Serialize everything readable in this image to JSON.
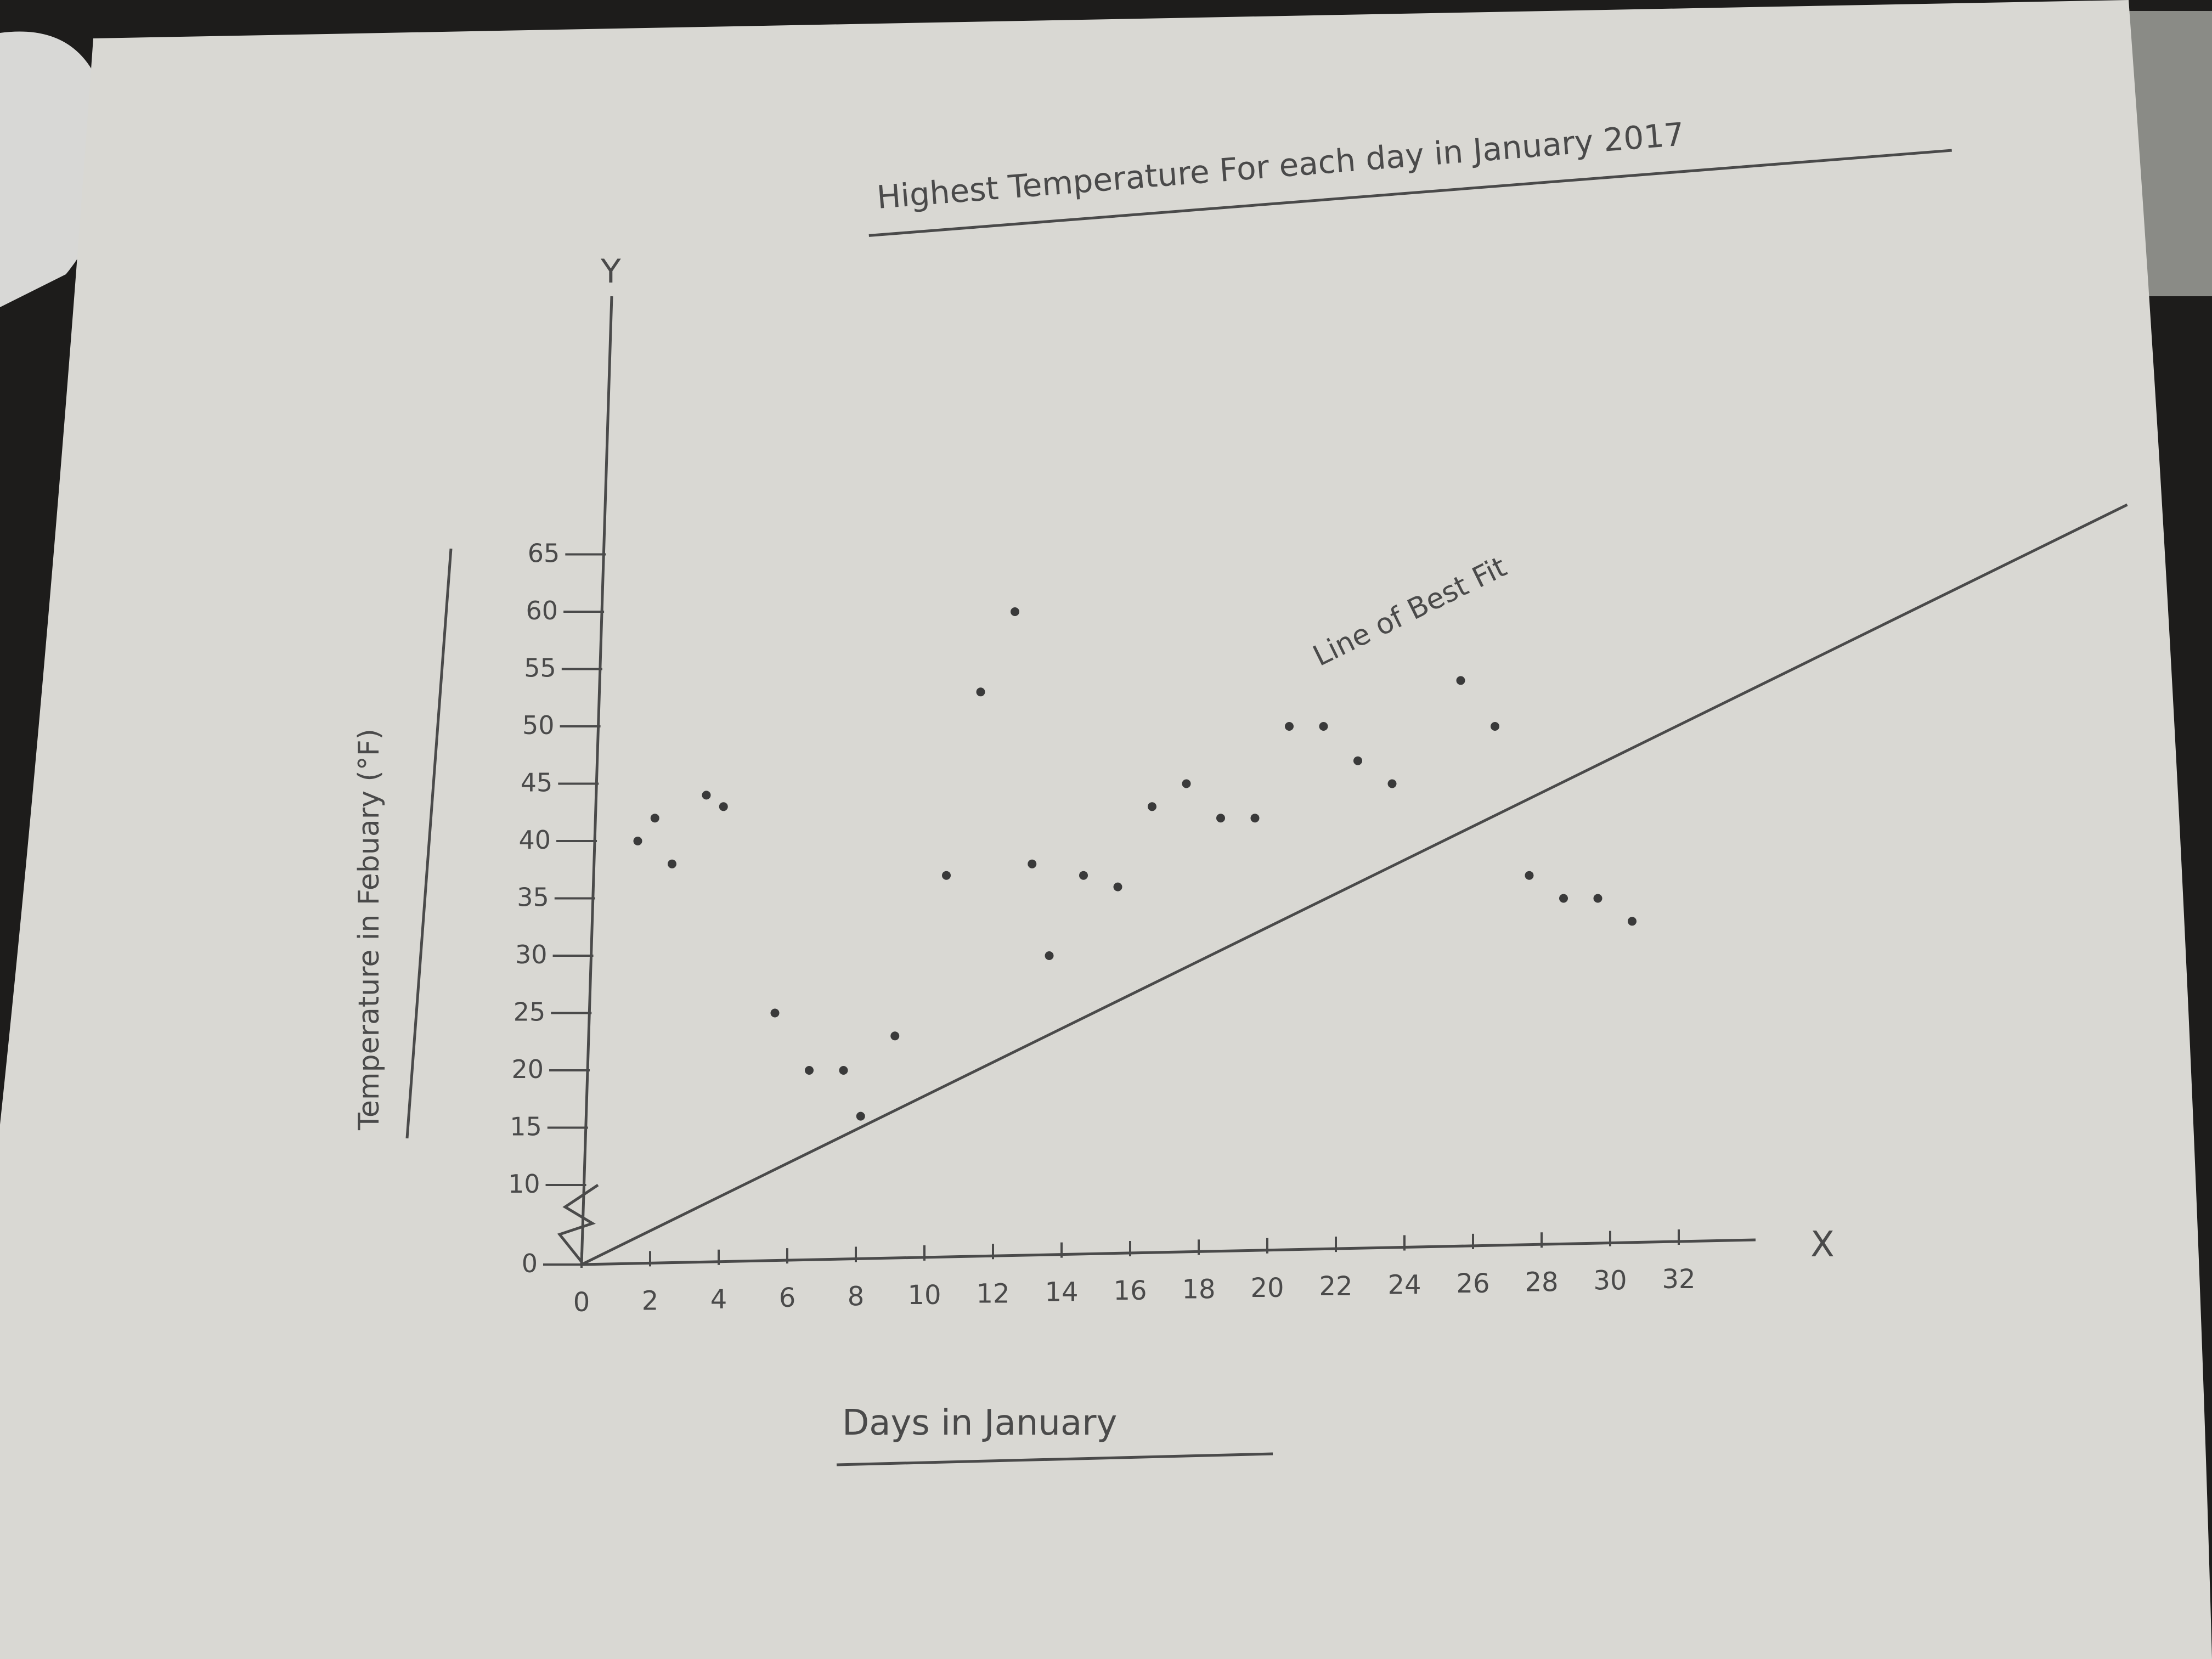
{
  "colors": {
    "background": "#1d1c1b",
    "paper": "#d9d8d3",
    "pencil": "#4a4a4a",
    "point": "#3a3a3a"
  },
  "chart_data": {
    "type": "scatter",
    "title": "Highest Temperature For each day in January 2017",
    "xlabel": "Days in January",
    "ylabel": "Temperature in Febuary (°F)",
    "x_axis_letter": "X",
    "y_axis_letter": "Y",
    "xlim": [
      0,
      32
    ],
    "ylim": [
      0,
      65
    ],
    "axis_break": "zigzag between 0 and 10 on y-axis",
    "grid": false,
    "x_ticks": [
      0,
      2,
      4,
      6,
      8,
      10,
      12,
      14,
      16,
      18,
      20,
      22,
      24,
      26,
      28,
      30,
      32
    ],
    "x_tick_labels": [
      "0",
      "2",
      "4",
      "6",
      "8",
      "10",
      "12",
      "14",
      "16",
      "18",
      "20",
      "22",
      "24",
      "26",
      "28",
      "30",
      "32"
    ],
    "y_ticks": [
      0,
      10,
      15,
      20,
      25,
      30,
      35,
      40,
      45,
      50,
      55,
      60,
      65
    ],
    "y_tick_labels": [
      "0",
      "10",
      "15",
      "20",
      "25",
      "30",
      "35",
      "40",
      "45",
      "50",
      "55",
      "60",
      "65"
    ],
    "points": [
      {
        "x": 1,
        "y": 40
      },
      {
        "x": 1.5,
        "y": 42
      },
      {
        "x": 2,
        "y": 38
      },
      {
        "x": 3,
        "y": 44
      },
      {
        "x": 3.5,
        "y": 43
      },
      {
        "x": 5,
        "y": 25
      },
      {
        "x": 6,
        "y": 20
      },
      {
        "x": 7,
        "y": 20
      },
      {
        "x": 7.5,
        "y": 16
      },
      {
        "x": 8.5,
        "y": 23
      },
      {
        "x": 10,
        "y": 37
      },
      {
        "x": 11,
        "y": 53
      },
      {
        "x": 12,
        "y": 60
      },
      {
        "x": 12.5,
        "y": 38
      },
      {
        "x": 13,
        "y": 30
      },
      {
        "x": 14,
        "y": 37
      },
      {
        "x": 15,
        "y": 36
      },
      {
        "x": 16,
        "y": 43
      },
      {
        "x": 17,
        "y": 45
      },
      {
        "x": 18,
        "y": 42
      },
      {
        "x": 19,
        "y": 42
      },
      {
        "x": 20,
        "y": 50
      },
      {
        "x": 21,
        "y": 50
      },
      {
        "x": 22,
        "y": 47
      },
      {
        "x": 23,
        "y": 45
      },
      {
        "x": 25,
        "y": 54
      },
      {
        "x": 26,
        "y": 50
      },
      {
        "x": 27,
        "y": 37
      },
      {
        "x": 28,
        "y": 35
      },
      {
        "x": 29,
        "y": 35
      },
      {
        "x": 30,
        "y": 33
      }
    ],
    "best_fit": {
      "label": "Line of Best Fit",
      "x": [
        0,
        31
      ],
      "y": [
        0,
        72
      ]
    }
  }
}
